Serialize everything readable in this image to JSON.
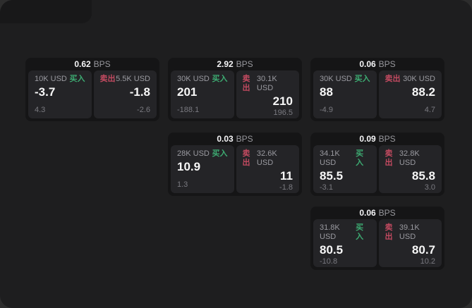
{
  "labels": {
    "bps": "BPS",
    "buy": "买入",
    "sell": "卖出"
  },
  "colors": {
    "desktop_bg": "#2d2d2d",
    "page_bg": "#1e1e1f",
    "card_bg": "#151516",
    "panel_bg": "#242427",
    "buy_green": "#3dab72",
    "sell_red": "#c24a60",
    "text_primary": "#f7f7f7",
    "text_secondary": "#9a9aa0",
    "text_muted": "#7a7a80"
  },
  "cards": [
    {
      "spread": "0.62",
      "buy": {
        "amount": "10K USD",
        "price": "-3.7",
        "delta": "4.3"
      },
      "sell": {
        "amount": "5.5K USD",
        "price": "-1.8",
        "delta": "-2.6"
      }
    },
    {
      "spread": "2.92",
      "buy": {
        "amount": "30K USD",
        "price": "201",
        "delta": "-188.1"
      },
      "sell": {
        "amount": "30.1K USD",
        "price": "210",
        "delta": "196.5"
      }
    },
    {
      "spread": "0.06",
      "buy": {
        "amount": "30K USD",
        "price": "88",
        "delta": "-4.9"
      },
      "sell": {
        "amount": "30K USD",
        "price": "88.2",
        "delta": "4.7"
      }
    },
    {
      "spread": "0.03",
      "buy": {
        "amount": "28K USD",
        "price": "10.9",
        "delta": "1.3"
      },
      "sell": {
        "amount": "32.6K USD",
        "price": "11",
        "delta": "-1.8"
      }
    },
    {
      "spread": "0.09",
      "buy": {
        "amount": "34.1K USD",
        "price": "85.5",
        "delta": "-3.1"
      },
      "sell": {
        "amount": "32.8K USD",
        "price": "85.8",
        "delta": "3.0"
      }
    },
    {
      "spread": "0.06",
      "buy": {
        "amount": "31.8K USD",
        "price": "80.5",
        "delta": "-10.8"
      },
      "sell": {
        "amount": "39.1K USD",
        "price": "80.7",
        "delta": "10.2"
      }
    }
  ]
}
